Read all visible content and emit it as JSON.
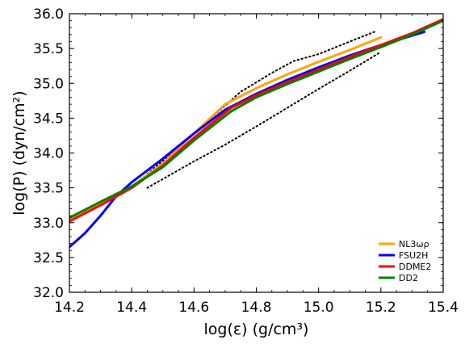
{
  "chart_data": {
    "type": "line",
    "xlabel": "log(ε) (g/cm³)",
    "ylabel": "log(P) (dyn/cm²)",
    "xlim": [
      14.2,
      15.4
    ],
    "ylim": [
      32.0,
      36.0
    ],
    "xticks": [
      "14.2",
      "14.4",
      "14.6",
      "14.8",
      "15.0",
      "15.2",
      "15.4"
    ],
    "yticks": [
      "32.0",
      "32.5",
      "33.0",
      "33.5",
      "34.0",
      "34.5",
      "35.0",
      "35.5",
      "36.0"
    ],
    "grid": false,
    "legend_position": "bottom-right",
    "series": [
      {
        "name": "NL3ωρ",
        "color": "#FFA500",
        "x": [
          14.2,
          14.3,
          14.4,
          14.5,
          14.6,
          14.7,
          14.8,
          14.9,
          15.0,
          15.1,
          15.2
        ],
        "y": [
          33.05,
          33.27,
          33.52,
          33.85,
          34.28,
          34.7,
          34.93,
          35.13,
          35.31,
          35.48,
          35.66
        ]
      },
      {
        "name": "FSU2H",
        "color": "#0000FF",
        "x": [
          14.2,
          14.25,
          14.3,
          14.35,
          14.4,
          14.45,
          14.5,
          14.6,
          14.7,
          14.8,
          14.9,
          15.0,
          15.1,
          15.2,
          15.34
        ],
        "y": [
          32.65,
          32.85,
          33.1,
          33.38,
          33.58,
          33.75,
          33.92,
          34.28,
          34.62,
          34.85,
          35.05,
          35.23,
          35.4,
          35.55,
          35.74
        ]
      },
      {
        "name": "DDME2",
        "color": "#FF0000",
        "x": [
          14.2,
          14.3,
          14.4,
          14.5,
          14.6,
          14.72,
          14.8,
          14.9,
          15.0,
          15.1,
          15.2,
          15.3,
          15.4
        ],
        "y": [
          33.02,
          33.25,
          33.5,
          33.82,
          34.22,
          34.65,
          34.83,
          35.02,
          35.2,
          35.38,
          35.55,
          35.72,
          35.92
        ]
      },
      {
        "name": "DD2",
        "color": "#008000",
        "x": [
          14.2,
          14.3,
          14.4,
          14.5,
          14.6,
          14.72,
          14.8,
          14.9,
          15.0,
          15.1,
          15.2,
          15.3,
          15.4
        ],
        "y": [
          33.07,
          33.3,
          33.52,
          33.8,
          34.18,
          34.6,
          34.8,
          34.99,
          35.17,
          35.35,
          35.52,
          35.7,
          35.9
        ]
      }
    ],
    "bounds": [
      {
        "color": "#000000",
        "style": "dotted",
        "x": [
          14.45,
          14.6,
          14.7,
          14.8,
          14.9,
          15.0,
          15.1,
          15.2
        ],
        "y": [
          33.5,
          33.88,
          34.12,
          34.38,
          34.65,
          34.92,
          35.18,
          35.45
        ]
      },
      {
        "color": "#000000",
        "style": "dotted",
        "x": [
          14.45,
          14.55,
          14.65,
          14.75,
          14.85,
          14.92,
          15.0,
          15.1,
          15.18
        ],
        "y": [
          33.7,
          34.08,
          34.48,
          34.88,
          35.15,
          35.32,
          35.42,
          35.6,
          35.74
        ]
      }
    ]
  }
}
